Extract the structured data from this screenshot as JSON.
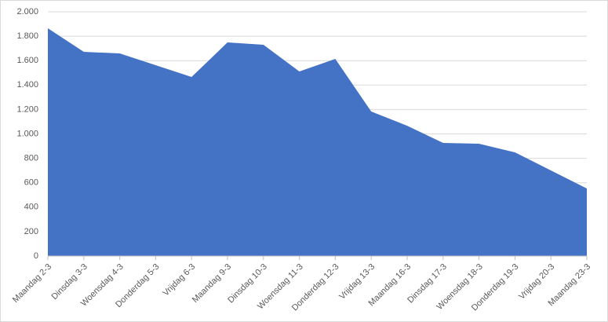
{
  "chart_data": {
    "type": "area",
    "categories": [
      "Maandag 2-3",
      "Dinsdag 3-3",
      "Woensdag 4-3",
      "Donderdag 5-3",
      "Vrijdag 6-3",
      "Maandag 9-3",
      "Dinsdag 10-3",
      "Woensdag 11-3",
      "Donderdag 12-3",
      "Vrijdag 13-3",
      "Maandag 16-3",
      "Dinsdag 17-3",
      "Woensdag 18-3",
      "Donderdag 19-3",
      "Vrijdag 20-3",
      "Maandag 23-3"
    ],
    "values": [
      1865,
      1672,
      1659,
      1563,
      1466,
      1749,
      1730,
      1511,
      1614,
      1183,
      1067,
      926,
      920,
      849,
      701,
      553
    ],
    "color": "#4472c4",
    "ylim": [
      0,
      2000
    ],
    "yticks": [
      0,
      200,
      400,
      600,
      800,
      {
        "value": 1000,
        "label": "1.000"
      },
      {
        "value": 1200,
        "label": "1.200"
      },
      {
        "value": 1400,
        "label": "1.400"
      },
      {
        "value": 1600,
        "label": "1.600"
      },
      {
        "value": 1800,
        "label": "1.800"
      },
      {
        "value": 2000,
        "label": "2.000"
      }
    ],
    "grid": true
  }
}
